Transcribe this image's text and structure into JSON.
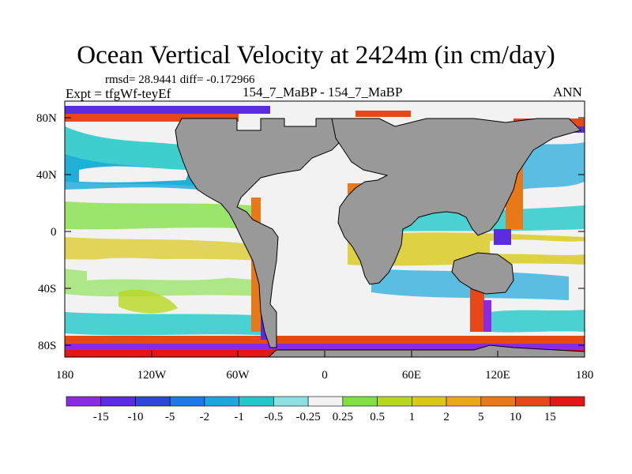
{
  "title": "Ocean Vertical Velocity at 2424m (in cm/day)",
  "stats": "rmsd= 28.9441 diff= -0.172966",
  "expt_label": "Expt = tfgWf-teyEf",
  "cases_label": "154_7_MaBP - 154_7_MaBP",
  "season": "ANN",
  "y_ticks": [
    "80N",
    "40N",
    "0",
    "40S",
    "80S"
  ],
  "x_ticks": [
    "180",
    "120W",
    "60W",
    "0",
    "60E",
    "120E",
    "180"
  ],
  "colorbar": {
    "labels": [
      "-15",
      "-10",
      "-5",
      "-2",
      "-1",
      "-0.5",
      "-0.25",
      "0.25",
      "0.5",
      "1",
      "2",
      "5",
      "10",
      "15"
    ],
    "colors": [
      "#8a2be2",
      "#5b2be0",
      "#2f47d8",
      "#1e78e8",
      "#18a8dc",
      "#20c8c8",
      "#8ee0e0",
      "#f2f2f2",
      "#7fe040",
      "#b8d820",
      "#d8c818",
      "#e8a818",
      "#e87818",
      "#e84818",
      "#e01818"
    ]
  },
  "land_color": "#999999"
}
